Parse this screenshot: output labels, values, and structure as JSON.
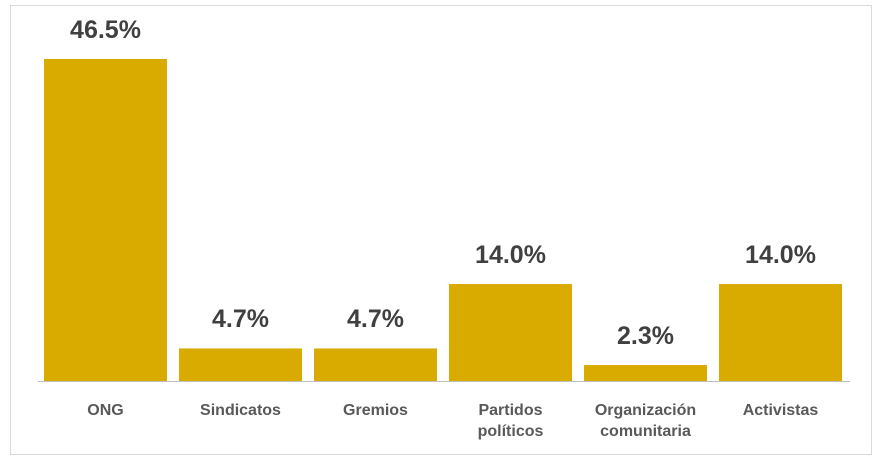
{
  "chart_data": {
    "type": "bar",
    "categories": [
      "ONG",
      "Sindicatos",
      "Gremios",
      "Partidos políticos",
      "Organización comunitaria",
      "Activistas"
    ],
    "values": [
      46.5,
      4.7,
      4.7,
      14.0,
      2.3,
      14.0
    ],
    "value_labels": [
      "46.5%",
      "4.7%",
      "4.7%",
      "14.0%",
      "2.3%",
      "14.0%"
    ],
    "color": "#d9aa00"
  }
}
